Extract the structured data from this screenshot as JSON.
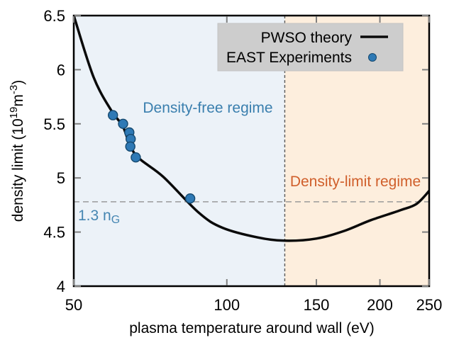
{
  "chart_data": {
    "type": "line",
    "title": "",
    "x_axis": {
      "label": "plasma temperature around wall (eV)",
      "scale": "log",
      "range": [
        50,
        250
      ],
      "ticks": [
        50,
        100,
        150,
        200,
        250
      ]
    },
    "y_axis": {
      "label": "density limit (10^19 m^-3)",
      "label_parts": {
        "p1": "density limit (10",
        "sup1": "19",
        "p2": "m",
        "sup2": "-3",
        "p3": ")"
      },
      "range": [
        4,
        6.5
      ],
      "ticks": [
        4,
        4.5,
        5,
        5.5,
        6,
        6.5
      ]
    },
    "series": [
      {
        "name": "PWSO theory",
        "type": "line",
        "color": "#0a0a0a",
        "line_width": 3.5,
        "x": [
          50,
          54.7,
          59.5,
          62.4,
          66,
          75,
          88,
          98,
          115,
          130,
          150,
          170,
          192,
          219,
          236,
          250
        ],
        "y": [
          6.5,
          5.93,
          5.61,
          5.48,
          5.22,
          5.01,
          4.68,
          4.54,
          4.45,
          4.42,
          4.44,
          4.51,
          4.61,
          4.7,
          4.76,
          4.88
        ]
      },
      {
        "name": "EAST Experiments",
        "type": "scatter",
        "color": "#2e79b5",
        "edge_color": "#15496f",
        "marker_radius": 6.5,
        "x": [
          59.7,
          62.5,
          64.3,
          64.7,
          64.6,
          66.2,
          84.7
        ],
        "y": [
          5.58,
          5.5,
          5.42,
          5.36,
          5.29,
          5.19,
          4.81
        ]
      }
    ],
    "reference_lines": [
      {
        "orientation": "horizontal",
        "value": 4.78,
        "style": "dashed",
        "color": "#9a9a9a",
        "label_main": "1.3 n",
        "label_sub": "G",
        "label_color": "#4586b2"
      },
      {
        "orientation": "vertical",
        "value": 130,
        "style": "dashed",
        "color": "#5a5a5a"
      }
    ],
    "regions": [
      {
        "name": "density-free",
        "x_range": [
          50,
          130
        ],
        "fill": "#ecf2f8",
        "label": "Density-free regime",
        "label_color": "#3a7fae"
      },
      {
        "name": "density-limit",
        "x_range": [
          130,
          250
        ],
        "fill": "#fdeedd",
        "label": "Density-limit regime",
        "label_color": "#d05f2b"
      }
    ],
    "legend": {
      "position": "top-right",
      "bg": "#cdcdcd",
      "entries": [
        "PWSO theory",
        "EAST Experiments"
      ]
    },
    "grid": false,
    "frame_color": "#000000",
    "tick_color": "#7f7f7f"
  }
}
